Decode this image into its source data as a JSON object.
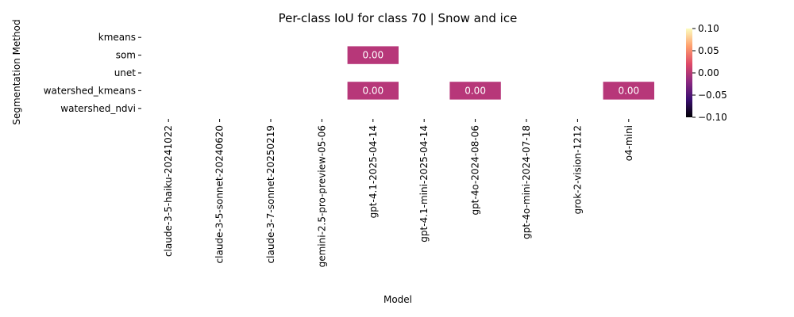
{
  "chart_data": {
    "type": "heatmap",
    "title": "Per-class IoU for class 70 | Snow and ice",
    "xlabel": "Model",
    "ylabel": "Segmentation Method",
    "x_categories": [
      "claude-3-5-haiku-20241022",
      "claude-3-5-sonnet-20240620",
      "claude-3-7-sonnet-20250219",
      "gemini-2.5-pro-preview-05-06",
      "gpt-4.1-2025-04-14",
      "gpt-4.1-mini-2025-04-14",
      "gpt-4o-2024-08-06",
      "gpt-4o-mini-2024-07-18",
      "grok-2-vision-1212",
      "o4-mini"
    ],
    "y_categories": [
      "kmeans",
      "som",
      "unet",
      "watershed_kmeans",
      "watershed_ndvi"
    ],
    "values": [
      [
        null,
        null,
        null,
        null,
        null,
        null,
        null,
        null,
        null,
        null
      ],
      [
        null,
        null,
        null,
        null,
        0.0,
        null,
        null,
        null,
        null,
        null
      ],
      [
        null,
        null,
        null,
        null,
        null,
        null,
        null,
        null,
        null,
        null
      ],
      [
        null,
        null,
        null,
        null,
        0.0,
        null,
        0.0,
        null,
        null,
        0.0
      ],
      [
        null,
        null,
        null,
        null,
        null,
        null,
        null,
        null,
        null,
        null
      ]
    ],
    "cell_labels": [
      [
        "",
        "",
        "",
        "",
        "",
        "",
        "",
        "",
        "",
        ""
      ],
      [
        "",
        "",
        "",
        "",
        "0.00",
        "",
        "",
        "",
        "",
        ""
      ],
      [
        "",
        "",
        "",
        "",
        "",
        "",
        "",
        "",
        "",
        ""
      ],
      [
        "",
        "",
        "",
        "",
        "0.00",
        "",
        "0.00",
        "",
        "",
        "0.00"
      ],
      [
        "",
        "",
        "",
        "",
        "",
        "",
        "",
        "",
        "",
        ""
      ]
    ],
    "colormap": "magma",
    "vmin": -0.1,
    "vmax": 0.1,
    "colorbar_ticks": [
      "0.10",
      "0.05",
      "0.00",
      "−0.05",
      "−0.10"
    ],
    "cell_color": "#b73779",
    "colorbar_colors": [
      "#fcfdbf",
      "#fe9f6d",
      "#de4968",
      "#8c2981",
      "#3b0f70",
      "#000004"
    ]
  }
}
